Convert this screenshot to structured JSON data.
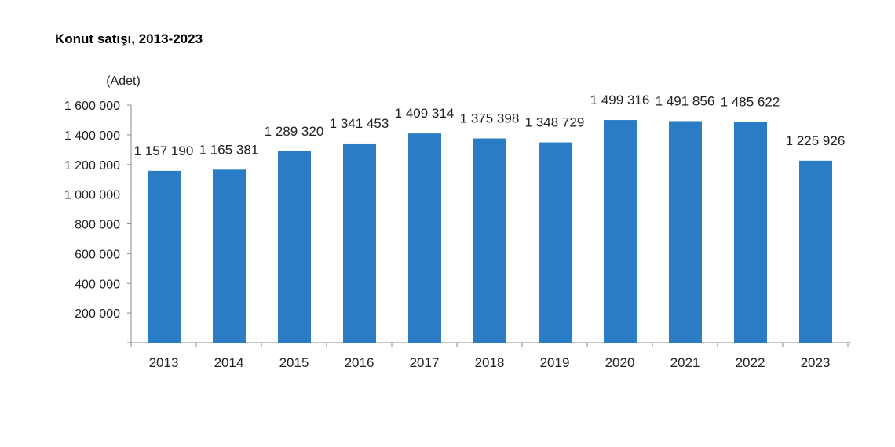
{
  "chart_data": {
    "type": "bar",
    "title": "Konut satışı, 2013-2023",
    "ylabel": "(Adet)",
    "xlabel": "",
    "categories": [
      "2013",
      "2014",
      "2015",
      "2016",
      "2017",
      "2018",
      "2019",
      "2020",
      "2021",
      "2022",
      "2023"
    ],
    "values": [
      1157190,
      1165381,
      1289320,
      1341453,
      1409314,
      1375398,
      1348729,
      1499316,
      1491856,
      1485622,
      1225926
    ],
    "data_labels": [
      "1 157 190",
      "1 165 381",
      "1 289 320",
      "1 341 453",
      "1 409 314",
      "1 375 398",
      "1 348 729",
      "1 499 316",
      "1 491 856",
      "1 485 622",
      "1 225 926"
    ],
    "ylim": [
      0,
      1600000
    ],
    "yticks": [
      200000,
      400000,
      600000,
      800000,
      1000000,
      1200000,
      1400000,
      1600000
    ],
    "ytick_labels": [
      "200 000",
      "400 000",
      "600 000",
      "800 000",
      "1 000 000",
      "1 200 000",
      "1 400 000",
      "1 600 000"
    ],
    "grid": false,
    "legend": "none",
    "bar_color": "#2A7DC4"
  }
}
